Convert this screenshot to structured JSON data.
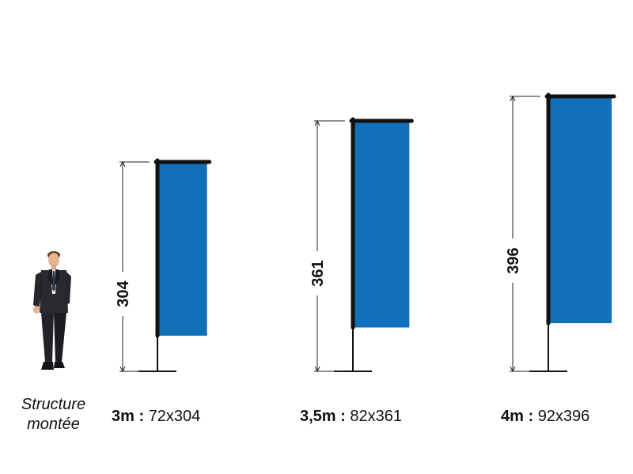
{
  "colors": {
    "flag": "#1270b8",
    "pole": "#111111",
    "guide": "#222222"
  },
  "person": {
    "label_line1": "Structure",
    "label_line2": "montée"
  },
  "flags": [
    {
      "height_label": "304",
      "size_name": "3m :",
      "dimensions": "72x304",
      "width": 72,
      "height": 304
    },
    {
      "height_label": "361",
      "size_name": "3,5m :",
      "dimensions": "82x361",
      "width": 82,
      "height": 361
    },
    {
      "height_label": "396",
      "size_name": "4m :",
      "dimensions": "92x396",
      "width": 92,
      "height": 396
    }
  ]
}
